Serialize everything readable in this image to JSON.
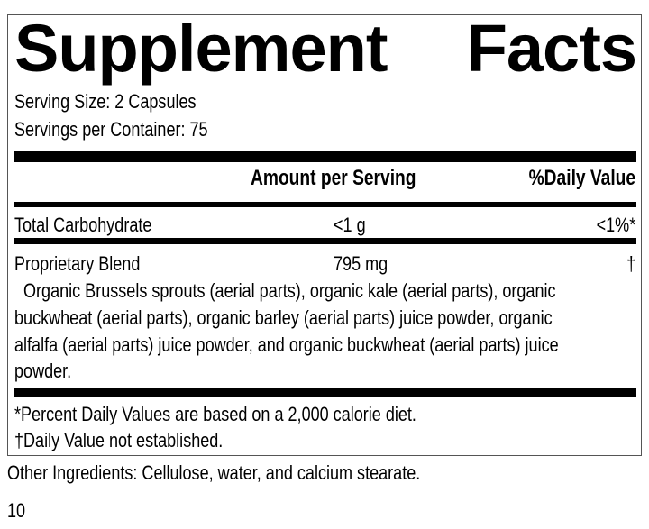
{
  "title": {
    "word1": "Supplement",
    "word2": "Facts"
  },
  "serving": {
    "size": "Serving Size: 2 Capsules",
    "per_container": "Servings per Container: 75"
  },
  "header": {
    "amount": "Amount per Serving",
    "daily_value": "%Daily Value"
  },
  "rows": [
    {
      "name": "Total Carbohydrate",
      "amount": "<1 g",
      "dv": "<1%*"
    },
    {
      "name": "Proprietary Blend",
      "amount": "795 mg",
      "dv": "†"
    }
  ],
  "blend_lines": [
    "Organic Brussels sprouts (aerial parts), organic kale (aerial parts), organic",
    "buckwheat (aerial parts), organic barley (aerial parts) juice powder, organic",
    "alfalfa (aerial parts) juice powder, and organic buckwheat (aerial parts) juice",
    "powder."
  ],
  "footnotes": {
    "percent": "*Percent Daily Values are based on a 2,000 calorie diet.",
    "dagger": "†Daily Value not established."
  },
  "other_ingredients": "Other Ingredients: Cellulose, water, and calcium stearate.",
  "page_number": "10"
}
